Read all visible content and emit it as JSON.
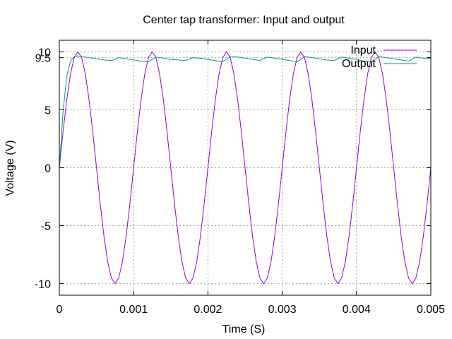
{
  "chart_data": {
    "type": "line",
    "title": "Center tap transformer: Input and output",
    "xlabel": "Time (S)",
    "ylabel": "Voltage (V)",
    "xlim": [
      0,
      0.005
    ],
    "ylim": [
      -11,
      11
    ],
    "xticks": [
      {
        "value": 0,
        "label": "0"
      },
      {
        "value": 0.001,
        "label": "0.001"
      },
      {
        "value": 0.002,
        "label": "0.002"
      },
      {
        "value": 0.003,
        "label": "0.003"
      },
      {
        "value": 0.004,
        "label": "0.004"
      },
      {
        "value": 0.005,
        "label": "0.005"
      }
    ],
    "yticks": [
      {
        "value": -10,
        "label": "-10"
      },
      {
        "value": -5,
        "label": "-5"
      },
      {
        "value": 0,
        "label": "0"
      },
      {
        "value": 5,
        "label": "5"
      },
      {
        "value": 9.5,
        "label": "9.5"
      },
      {
        "value": 10,
        "label": "10"
      }
    ],
    "grid": true,
    "legend_position": "top-right",
    "series": [
      {
        "name": "Input",
        "color": "#9400d3",
        "x": [
          0,
          5e-05,
          0.0001,
          0.00015,
          0.0002,
          0.00025,
          0.0003,
          0.00035,
          0.0004,
          0.00045,
          0.0005,
          0.00055,
          0.0006,
          0.00065,
          0.0007,
          0.00075,
          0.0008,
          0.00085,
          0.0009,
          0.00095,
          0.001,
          0.00105,
          0.0011,
          0.00115,
          0.0012,
          0.00125,
          0.0013,
          0.00135,
          0.0014,
          0.00145,
          0.0015,
          0.00155,
          0.0016,
          0.00165,
          0.0017,
          0.00175,
          0.0018,
          0.00185,
          0.0019,
          0.00195,
          0.002,
          0.00205,
          0.0021,
          0.00215,
          0.0022,
          0.00225,
          0.0023,
          0.00235,
          0.0024,
          0.00245,
          0.0025,
          0.00255,
          0.0026,
          0.00265,
          0.0027,
          0.00275,
          0.0028,
          0.00285,
          0.0029,
          0.00295,
          0.003,
          0.00305,
          0.0031,
          0.00315,
          0.0032,
          0.00325,
          0.0033,
          0.00335,
          0.0034,
          0.00345,
          0.0035,
          0.00355,
          0.0036,
          0.00365,
          0.0037,
          0.00375,
          0.0038,
          0.00385,
          0.0039,
          0.00395,
          0.004,
          0.00405,
          0.0041,
          0.00415,
          0.0042,
          0.00425,
          0.0043,
          0.00435,
          0.0044,
          0.00445,
          0.0045,
          0.00455,
          0.0046,
          0.00465,
          0.0047,
          0.00475,
          0.0048,
          0.00485,
          0.0049,
          0.00495,
          0.005
        ],
        "y": [
          0,
          3.09,
          5.88,
          8.09,
          9.51,
          10,
          9.51,
          8.09,
          5.88,
          3.09,
          0,
          -3.09,
          -5.88,
          -8.09,
          -9.51,
          -10,
          -9.51,
          -8.09,
          -5.88,
          -3.09,
          0,
          3.09,
          5.88,
          8.09,
          9.51,
          10,
          9.51,
          8.09,
          5.88,
          3.09,
          0,
          -3.09,
          -5.88,
          -8.09,
          -9.51,
          -10,
          -9.51,
          -8.09,
          -5.88,
          -3.09,
          0,
          3.09,
          5.88,
          8.09,
          9.51,
          10,
          9.51,
          8.09,
          5.88,
          3.09,
          0,
          -3.09,
          -5.88,
          -8.09,
          -9.51,
          -10,
          -9.51,
          -8.09,
          -5.88,
          -3.09,
          0,
          3.09,
          5.88,
          8.09,
          9.51,
          10,
          9.51,
          8.09,
          5.88,
          3.09,
          0,
          -3.09,
          -5.88,
          -8.09,
          -9.51,
          -10,
          -9.51,
          -8.09,
          -5.88,
          -3.09,
          0,
          3.09,
          5.88,
          8.09,
          9.51,
          10,
          9.51,
          8.09,
          5.88,
          3.09,
          0,
          -3.09,
          -5.88,
          -8.09,
          -9.51,
          -10,
          -9.51,
          -8.09,
          -5.88,
          -3.09,
          0
        ]
      },
      {
        "name": "Output",
        "color": "#009e73",
        "x": [
          0,
          5e-05,
          0.0001,
          0.00015,
          0.0002,
          0.00025,
          0.0003,
          0.0004,
          0.0005,
          0.0006,
          0.0007,
          0.00075,
          0.0008,
          0.0009,
          0.001,
          0.0011,
          0.0012,
          0.00125,
          0.0013,
          0.0014,
          0.0015,
          0.0016,
          0.0017,
          0.00175,
          0.0018,
          0.0019,
          0.002,
          0.0021,
          0.0022,
          0.00225,
          0.0023,
          0.0024,
          0.0025,
          0.0026,
          0.0027,
          0.00275,
          0.0028,
          0.0029,
          0.003,
          0.0031,
          0.0032,
          0.00325,
          0.0033,
          0.0034,
          0.0035,
          0.0036,
          0.0037,
          0.00375,
          0.0038,
          0.0039,
          0.004,
          0.0041,
          0.0042,
          0.00425,
          0.0043,
          0.0044,
          0.0045,
          0.0046,
          0.0047,
          0.00475,
          0.0048,
          0.0049,
          0.005
        ],
        "y": [
          0,
          4.8,
          7.9,
          9.2,
          9.6,
          9.65,
          9.6,
          9.5,
          9.4,
          9.3,
          9.25,
          9.35,
          9.5,
          9.4,
          9.3,
          9.2,
          9.15,
          9.35,
          9.55,
          9.45,
          9.35,
          9.3,
          9.25,
          9.4,
          9.5,
          9.45,
          9.35,
          9.25,
          9.15,
          9.35,
          9.6,
          9.55,
          9.45,
          9.35,
          9.25,
          9.4,
          9.55,
          9.45,
          9.35,
          9.25,
          9.15,
          9.35,
          9.6,
          9.5,
          9.4,
          9.3,
          9.25,
          9.4,
          9.55,
          9.45,
          9.35,
          9.2,
          9.15,
          9.35,
          9.6,
          9.5,
          9.4,
          9.3,
          9.2,
          9.35,
          9.55,
          9.45,
          9.45
        ]
      }
    ]
  }
}
